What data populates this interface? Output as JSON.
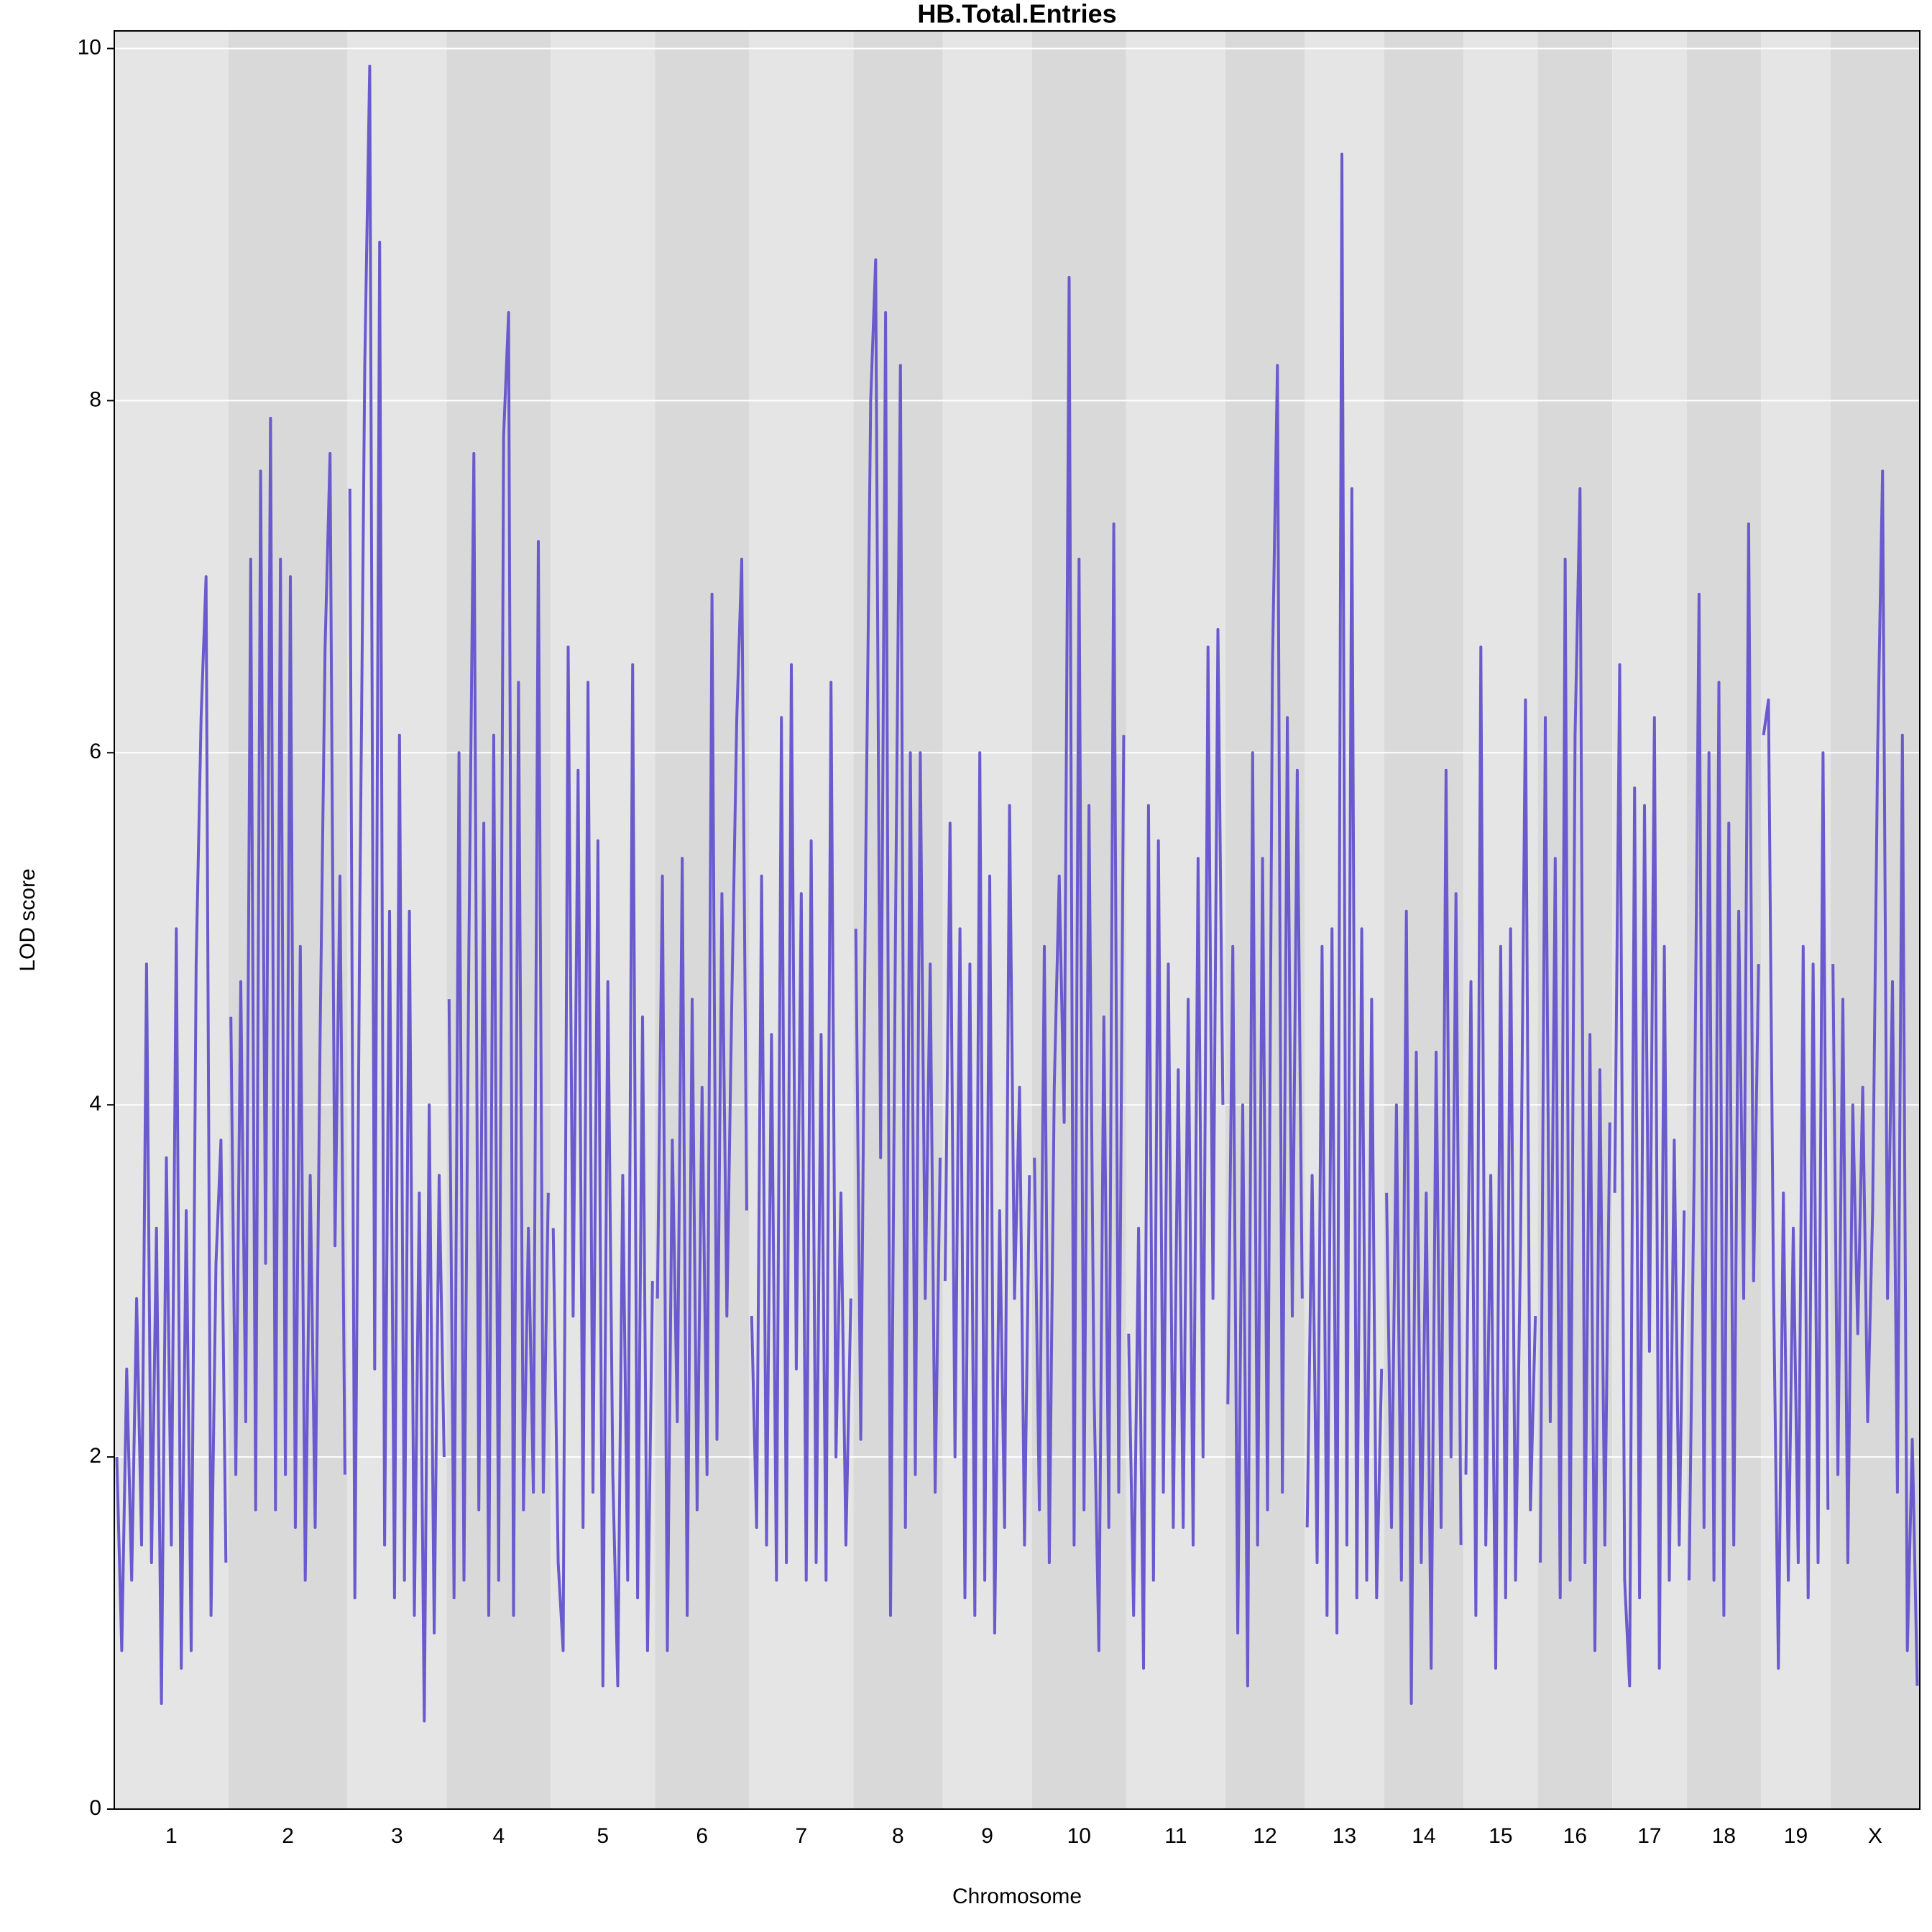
{
  "chart_data": {
    "type": "line",
    "title": "HB.Total.Entries",
    "x_label": "Chromosome",
    "y_label": "LOD score",
    "color": "#6a5acd",
    "grid": true,
    "ylim": [
      0,
      10.1
    ],
    "yticks": [
      0,
      2,
      4,
      6,
      8,
      10
    ],
    "chromosomes": [
      {
        "label": "1",
        "values": [
          2.0,
          0.9,
          2.5,
          1.3,
          2.9,
          1.5,
          4.8,
          1.4,
          3.3,
          0.6,
          3.7,
          1.5,
          5.0,
          0.8,
          3.4,
          0.9,
          4.8,
          6.2,
          7.0,
          1.1,
          3.1,
          3.8,
          1.4
        ]
      },
      {
        "label": "2",
        "values": [
          4.5,
          1.9,
          4.7,
          2.2,
          7.1,
          1.7,
          7.6,
          3.1,
          7.9,
          1.7,
          7.1,
          1.9,
          7.0,
          1.6,
          4.9,
          1.3,
          3.6,
          1.6,
          4.4,
          6.6,
          7.7,
          3.2,
          5.3,
          1.9
        ]
      },
      {
        "label": "3",
        "values": [
          7.5,
          1.2,
          5.1,
          8.2,
          9.9,
          2.5,
          8.9,
          1.5,
          5.1,
          1.2,
          6.1,
          1.3,
          5.1,
          1.1,
          3.5,
          0.5,
          4.0,
          1.0,
          3.6,
          2.0
        ]
      },
      {
        "label": "4",
        "values": [
          4.6,
          1.2,
          6.0,
          1.3,
          4.9,
          7.7,
          1.7,
          5.6,
          1.1,
          6.1,
          1.3,
          7.8,
          8.5,
          1.1,
          6.4,
          1.7,
          3.3,
          1.8,
          7.2,
          1.8,
          3.5
        ]
      },
      {
        "label": "5",
        "values": [
          3.3,
          1.4,
          0.9,
          6.6,
          2.8,
          5.9,
          1.6,
          6.4,
          1.8,
          5.5,
          0.7,
          4.7,
          1.9,
          0.7,
          3.6,
          1.3,
          6.5,
          1.2,
          4.5,
          0.9,
          3.0
        ]
      },
      {
        "label": "6",
        "values": [
          2.9,
          5.3,
          0.9,
          3.8,
          2.2,
          5.4,
          1.1,
          4.6,
          1.7,
          4.1,
          1.9,
          6.9,
          2.1,
          5.2,
          2.8,
          4.6,
          6.2,
          7.1,
          3.4
        ]
      },
      {
        "label": "7",
        "values": [
          2.8,
          1.6,
          5.3,
          1.5,
          4.4,
          1.3,
          6.2,
          1.4,
          6.5,
          2.5,
          5.2,
          1.3,
          5.5,
          1.4,
          4.4,
          1.3,
          6.4,
          2.0,
          3.5,
          1.5,
          2.9
        ]
      },
      {
        "label": "8",
        "values": [
          5.0,
          2.1,
          5.4,
          8.0,
          8.8,
          3.7,
          8.5,
          1.1,
          5.0,
          8.2,
          1.6,
          6.0,
          1.9,
          6.0,
          2.9,
          4.8,
          1.8,
          3.7
        ]
      },
      {
        "label": "9",
        "values": [
          3.0,
          5.6,
          2.0,
          5.0,
          1.2,
          4.8,
          1.1,
          6.0,
          1.3,
          5.3,
          1.0,
          3.4,
          1.6,
          5.7,
          2.9,
          4.1,
          1.5,
          3.6
        ]
      },
      {
        "label": "10",
        "values": [
          3.7,
          1.7,
          4.9,
          1.4,
          4.1,
          5.3,
          3.9,
          8.7,
          1.5,
          7.1,
          1.7,
          5.7,
          2.4,
          0.9,
          4.5,
          1.6,
          7.3,
          1.8,
          6.1
        ]
      },
      {
        "label": "11",
        "values": [
          2.7,
          1.1,
          3.3,
          0.8,
          5.7,
          1.3,
          5.5,
          1.8,
          4.8,
          1.6,
          4.2,
          1.6,
          4.6,
          1.5,
          5.4,
          2.0,
          6.6,
          2.9,
          6.7,
          4.0
        ]
      },
      {
        "label": "12",
        "values": [
          2.3,
          4.9,
          1.0,
          4.0,
          0.7,
          6.0,
          1.5,
          5.4,
          1.7,
          6.5,
          8.2,
          1.8,
          6.2,
          2.8,
          5.9,
          2.9
        ]
      },
      {
        "label": "13",
        "values": [
          1.6,
          3.6,
          1.4,
          4.9,
          1.1,
          5.0,
          1.0,
          9.4,
          1.5,
          7.5,
          1.2,
          5.0,
          1.3,
          4.6,
          1.2,
          2.5
        ]
      },
      {
        "label": "14",
        "values": [
          3.5,
          1.6,
          4.0,
          1.3,
          5.1,
          0.6,
          4.3,
          1.4,
          3.5,
          0.8,
          4.3,
          1.6,
          5.9,
          2.0,
          5.2,
          1.5
        ]
      },
      {
        "label": "15",
        "values": [
          1.9,
          4.7,
          1.1,
          6.6,
          1.5,
          3.6,
          0.8,
          4.9,
          1.2,
          5.0,
          1.3,
          3.2,
          6.3,
          1.7,
          2.8
        ]
      },
      {
        "label": "16",
        "values": [
          1.4,
          6.2,
          2.2,
          5.4,
          1.2,
          7.1,
          1.3,
          6.1,
          7.5,
          1.4,
          4.4,
          0.9,
          4.2,
          1.5,
          3.9
        ]
      },
      {
        "label": "17",
        "values": [
          3.5,
          6.5,
          1.3,
          0.7,
          5.8,
          1.2,
          5.7,
          2.6,
          6.2,
          0.8,
          4.9,
          1.3,
          3.8,
          1.5,
          3.4
        ]
      },
      {
        "label": "18",
        "values": [
          1.3,
          3.6,
          6.9,
          1.6,
          6.0,
          1.3,
          6.4,
          1.1,
          5.6,
          1.5,
          5.1,
          2.9,
          7.3,
          3.0,
          4.8
        ]
      },
      {
        "label": "19",
        "values": [
          6.1,
          6.3,
          3.0,
          0.8,
          3.5,
          1.3,
          3.3,
          1.4,
          4.9,
          1.2,
          4.8,
          1.4,
          6.0,
          1.7
        ]
      },
      {
        "label": "X",
        "values": [
          4.8,
          1.9,
          4.6,
          1.4,
          4.0,
          2.7,
          4.1,
          2.2,
          3.4,
          6.0,
          7.6,
          2.9,
          4.7,
          1.8,
          6.1,
          0.9,
          2.1,
          0.7
        ]
      }
    ]
  }
}
